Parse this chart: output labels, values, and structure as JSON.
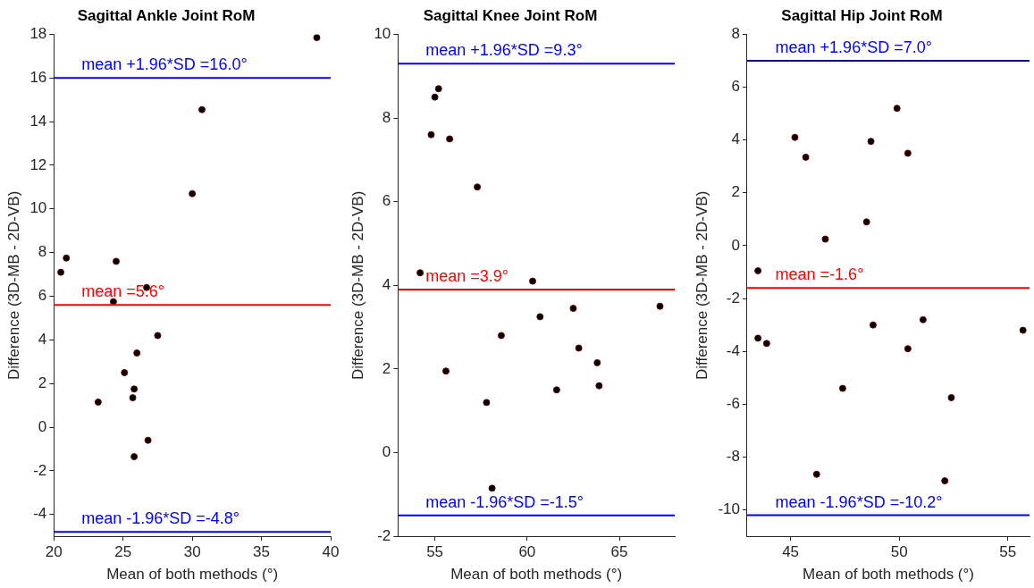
{
  "chart_data": [
    {
      "type": "scatter",
      "title": "Sagittal Ankle Joint RoM",
      "xlabel": "Mean of both methods (°)",
      "ylabel": "Difference (3D-MB - 2D-VB)",
      "series": [
        {
          "color": "#000000",
          "x": [
            39.0,
            30.7,
            30.0,
            20.9,
            20.5,
            24.5,
            26.7,
            24.3,
            27.5,
            26.0,
            25.1,
            25.8,
            25.7,
            23.2,
            26.8,
            25.8
          ],
          "values": [
            17.85,
            14.55,
            10.7,
            7.75,
            7.1,
            7.6,
            6.4,
            5.75,
            4.2,
            3.4,
            2.5,
            1.75,
            1.35,
            1.15,
            -0.6,
            -1.35
          ]
        }
      ],
      "xlim": [
        20,
        40
      ],
      "xticks": [
        20,
        25,
        30,
        35,
        40
      ],
      "ylim": [
        -5,
        18
      ],
      "yticks": [
        -4,
        -2,
        0,
        2,
        4,
        6,
        8,
        10,
        12,
        14,
        16,
        18
      ],
      "ref_lines": [
        {
          "axis": "y",
          "value": 16.0,
          "label": "mean +1.96*SD =16.0°",
          "color": "#0000ff"
        },
        {
          "axis": "y",
          "value": 5.6,
          "label": "mean =5.6°",
          "color": "#ff0000"
        },
        {
          "axis": "y",
          "value": -4.8,
          "label": "mean -1.96*SD =-4.8°",
          "color": "#0000ff"
        }
      ],
      "grid": false,
      "legend": false,
      "marker": "circle"
    },
    {
      "type": "scatter",
      "title": "Sagittal Knee Joint RoM",
      "xlabel": "Mean of both methods (°)",
      "ylabel": "Difference (3D-MB - 2D-VB)",
      "series": [
        {
          "color": "#000000",
          "x": [
            54.2,
            55.0,
            55.2,
            54.8,
            55.8,
            57.3,
            60.3,
            60.7,
            58.6,
            55.6,
            57.8,
            62.5,
            62.8,
            63.8,
            63.9,
            61.6,
            67.2,
            58.1
          ],
          "values": [
            4.3,
            8.5,
            8.7,
            7.6,
            7.5,
            6.35,
            4.1,
            3.25,
            2.8,
            1.95,
            1.2,
            3.45,
            2.5,
            2.15,
            1.6,
            1.5,
            3.5,
            -0.85
          ]
        }
      ],
      "xlim": [
        53,
        68
      ],
      "xticks": [
        55,
        60,
        65
      ],
      "ylim": [
        -2,
        10
      ],
      "yticks": [
        -2,
        0,
        2,
        4,
        6,
        8,
        10
      ],
      "ref_lines": [
        {
          "axis": "y",
          "value": 9.3,
          "label": "mean +1.96*SD =9.3°",
          "color": "#0000ff"
        },
        {
          "axis": "y",
          "value": 3.9,
          "label": "mean =3.9°",
          "color": "#ff0000"
        },
        {
          "axis": "y",
          "value": -1.5,
          "label": "mean -1.96*SD =-1.5°",
          "color": "#0000ff"
        }
      ],
      "grid": false,
      "legend": false,
      "marker": "circle"
    },
    {
      "type": "scatter",
      "title": "Sagittal Hip Joint RoM",
      "xlabel": "Mean of both methods (°)",
      "ylabel": "Difference (3D-MB - 2D-VB)",
      "series": [
        {
          "color": "#000000",
          "x": [
            43.5,
            45.2,
            45.7,
            46.6,
            48.5,
            48.7,
            49.9,
            50.4,
            43.5,
            43.9,
            48.8,
            51.1,
            50.4,
            47.4,
            52.4,
            46.2,
            52.1,
            55.7
          ],
          "values": [
            -0.95,
            4.1,
            3.35,
            0.25,
            0.9,
            3.95,
            5.2,
            3.5,
            -3.5,
            -3.7,
            -3.0,
            -2.8,
            -3.9,
            -5.4,
            -5.75,
            -8.65,
            -8.9,
            -3.2
          ]
        }
      ],
      "xlim": [
        43,
        56
      ],
      "xticks": [
        45,
        50,
        55
      ],
      "ylim": [
        -11,
        8
      ],
      "yticks": [
        -10,
        -8,
        -6,
        -4,
        -2,
        0,
        2,
        4,
        6,
        8
      ],
      "ref_lines": [
        {
          "axis": "y",
          "value": 7.0,
          "label": "mean +1.96*SD =7.0°",
          "color": "#0000ff"
        },
        {
          "axis": "y",
          "value": -1.6,
          "label": "mean =-1.6°",
          "color": "#ff0000"
        },
        {
          "axis": "y",
          "value": -10.2,
          "label": "mean -1.96*SD =-10.2°",
          "color": "#0000ff"
        }
      ],
      "grid": false,
      "legend": false,
      "marker": "circle"
    }
  ]
}
